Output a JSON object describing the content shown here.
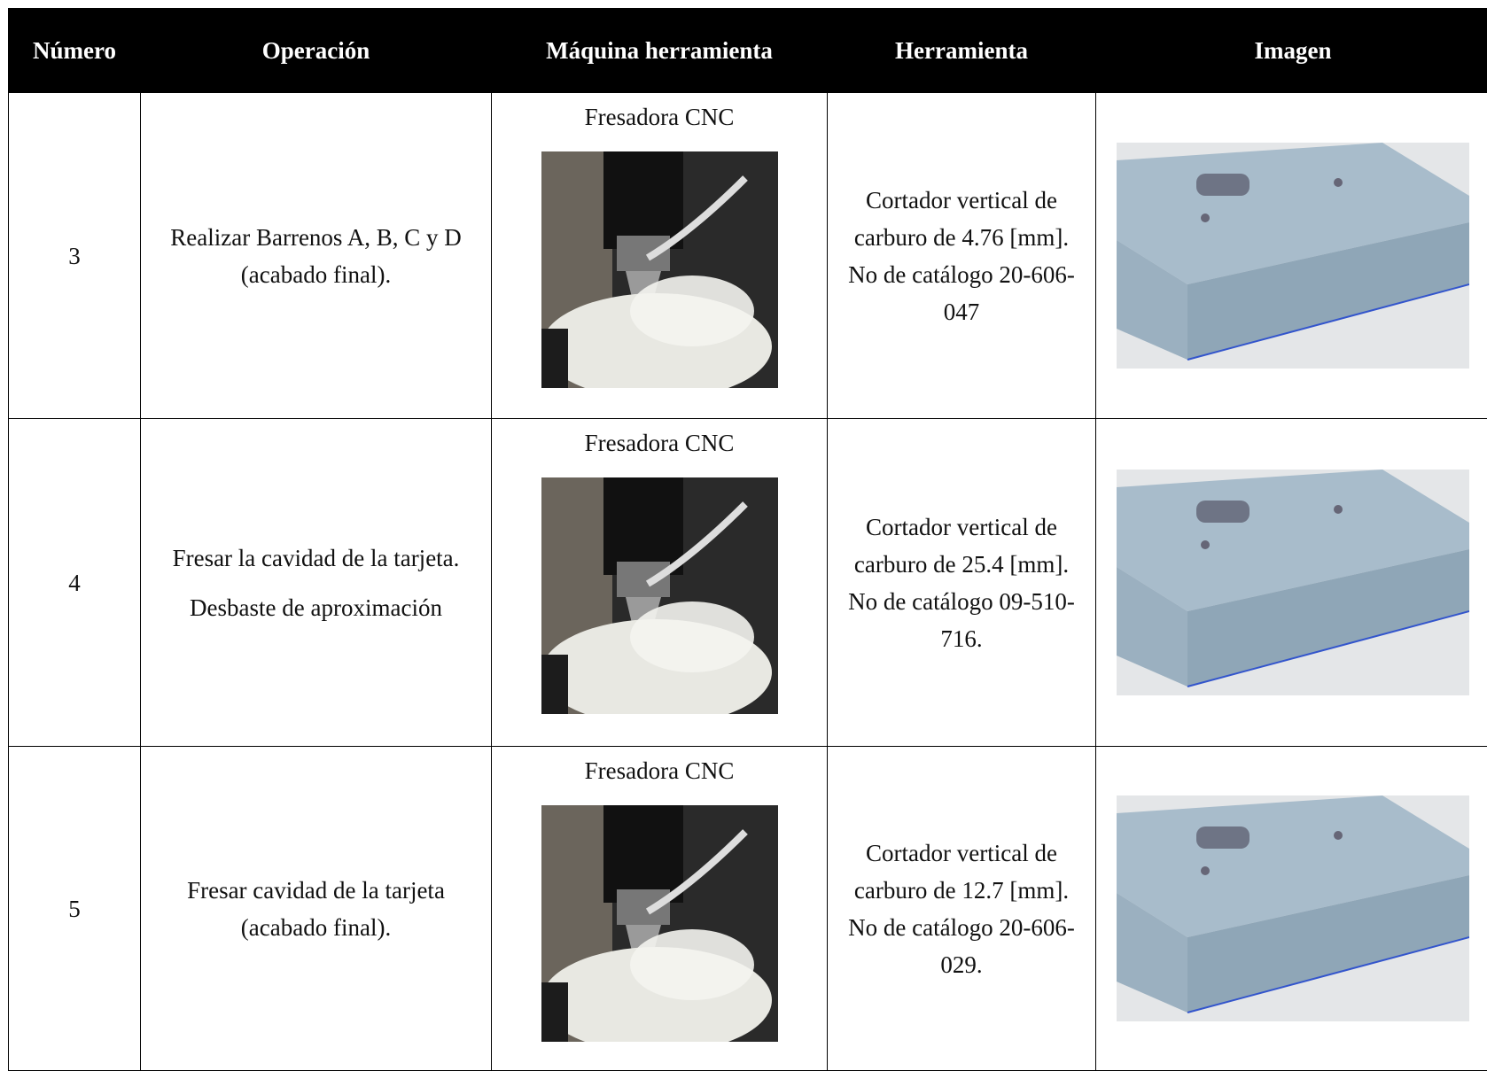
{
  "table": {
    "headers": [
      "Número",
      "Operación",
      "Máquina herramienta",
      "Herramienta",
      "Imagen"
    ],
    "rows": [
      {
        "number": "3",
        "operation": [
          "Realizar Barrenos A, B, C y D (acabado final)."
        ],
        "machine": "Fresadora CNC",
        "tool": "Cortador vertical de carburo de 4.76 [mm]. No de catálogo 20-606-047"
      },
      {
        "number": "4",
        "operation": [
          "Fresar la cavidad de la tarjeta.",
          "Desbaste de aproximación"
        ],
        "machine": "Fresadora CNC",
        "tool": "Cortador vertical de carburo de 25.4 [mm]. No de catálogo 09-510-716."
      },
      {
        "number": "5",
        "operation": [
          "Fresar cavidad de la tarjeta (acabado final)."
        ],
        "machine": "Fresadora CNC",
        "tool": "Cortador vertical de carburo de  12.7 [mm]. No de catálogo 20-606-029."
      }
    ]
  }
}
